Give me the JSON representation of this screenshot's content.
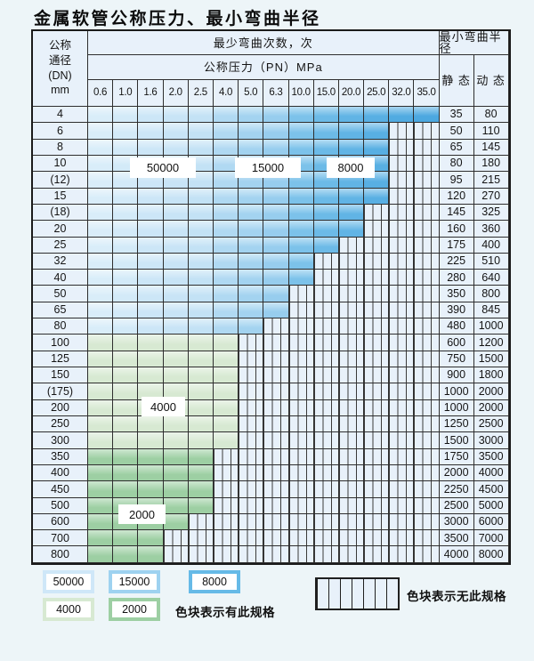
{
  "title": "金属软管公称压力、最小弯曲半径",
  "table": {
    "corner_header": [
      "公称",
      "通径",
      "(DN)",
      "mm"
    ],
    "bend_count_header": "最少弯曲次数，次",
    "pressure_header": "公称压力（PN）MPa",
    "radius_header": "最小弯曲半径",
    "static_header": "静 态",
    "dynamic_header": "动 态",
    "pressure_columns": [
      "0.6",
      "1.0",
      "1.6",
      "2.0",
      "2.5",
      "4.0",
      "5.0",
      "6.3",
      "10.0",
      "15.0",
      "20.0",
      "25.0",
      "32.0",
      "35.0"
    ],
    "rows": [
      {
        "dn": "4",
        "colored_until": 13,
        "palette": "blue",
        "static": "35",
        "dynamic": "80"
      },
      {
        "dn": "6",
        "colored_until": 11,
        "palette": "blue",
        "static": "50",
        "dynamic": "110"
      },
      {
        "dn": "8",
        "colored_until": 11,
        "palette": "blue",
        "static": "65",
        "dynamic": "145"
      },
      {
        "dn": "10",
        "colored_until": 11,
        "palette": "blue",
        "static": "80",
        "dynamic": "180"
      },
      {
        "dn": "(12)",
        "colored_until": 11,
        "palette": "blue",
        "static": "95",
        "dynamic": "215"
      },
      {
        "dn": "15",
        "colored_until": 11,
        "palette": "blue",
        "static": "120",
        "dynamic": "270"
      },
      {
        "dn": "(18)",
        "colored_until": 10,
        "palette": "blue",
        "static": "145",
        "dynamic": "325"
      },
      {
        "dn": "20",
        "colored_until": 10,
        "palette": "blue",
        "static": "160",
        "dynamic": "360"
      },
      {
        "dn": "25",
        "colored_until": 9,
        "palette": "blue",
        "static": "175",
        "dynamic": "400"
      },
      {
        "dn": "32",
        "colored_until": 8,
        "palette": "blue",
        "static": "225",
        "dynamic": "510"
      },
      {
        "dn": "40",
        "colored_until": 8,
        "palette": "blue",
        "static": "280",
        "dynamic": "640"
      },
      {
        "dn": "50",
        "colored_until": 7,
        "palette": "blue",
        "static": "350",
        "dynamic": "800"
      },
      {
        "dn": "65",
        "colored_until": 7,
        "palette": "blue",
        "static": "390",
        "dynamic": "845"
      },
      {
        "dn": "80",
        "colored_until": 6,
        "palette": "blue",
        "static": "480",
        "dynamic": "1000"
      },
      {
        "dn": "100",
        "colored_until": 5,
        "palette": "green4000",
        "static": "600",
        "dynamic": "1200"
      },
      {
        "dn": "125",
        "colored_until": 5,
        "palette": "green4000",
        "static": "750",
        "dynamic": "1500"
      },
      {
        "dn": "150",
        "colored_until": 5,
        "palette": "green4000",
        "static": "900",
        "dynamic": "1800"
      },
      {
        "dn": "(175)",
        "colored_until": 5,
        "palette": "green4000",
        "static": "1000",
        "dynamic": "2000"
      },
      {
        "dn": "200",
        "colored_until": 5,
        "palette": "green4000",
        "static": "1000",
        "dynamic": "2000"
      },
      {
        "dn": "250",
        "colored_until": 5,
        "palette": "green4000",
        "static": "1250",
        "dynamic": "2500"
      },
      {
        "dn": "300",
        "colored_until": 5,
        "palette": "green4000",
        "static": "1500",
        "dynamic": "3000"
      },
      {
        "dn": "350",
        "colored_until": 4,
        "palette": "green2000",
        "static": "1750",
        "dynamic": "3500"
      },
      {
        "dn": "400",
        "colored_until": 4,
        "palette": "green2000",
        "static": "2000",
        "dynamic": "4000"
      },
      {
        "dn": "450",
        "colored_until": 4,
        "palette": "green2000",
        "static": "2250",
        "dynamic": "4500"
      },
      {
        "dn": "500",
        "colored_until": 4,
        "palette": "green2000",
        "static": "2500",
        "dynamic": "5000"
      },
      {
        "dn": "600",
        "colored_until": 3,
        "palette": "green2000",
        "static": "3000",
        "dynamic": "6000"
      },
      {
        "dn": "700",
        "colored_until": 2,
        "palette": "green2000",
        "static": "3500",
        "dynamic": "7000"
      },
      {
        "dn": "800",
        "colored_until": 2,
        "palette": "green2000",
        "static": "4000",
        "dynamic": "8000"
      }
    ]
  },
  "overlay_labels": [
    {
      "text": "50000"
    },
    {
      "text": "15000"
    },
    {
      "text": "8000"
    },
    {
      "text": "4000"
    },
    {
      "text": "2000"
    }
  ],
  "legend": {
    "items": [
      {
        "label": "50000",
        "color_key": "legend_50000"
      },
      {
        "label": "15000",
        "color_key": "legend_15000"
      },
      {
        "label": "8000",
        "color_key": "legend_8000"
      },
      {
        "label": "4000",
        "color_key": "green_4000"
      },
      {
        "label": "2000",
        "color_key": "green_2000"
      }
    ],
    "has_spec_text": "色块表示有此规格",
    "no_spec_text": "色块表示无此规格"
  },
  "colors": {
    "blue_column_fills": [
      "#d9edf9",
      "#d3eaf8",
      "#cce6f7",
      "#c8e4f6",
      "#c3e2f5",
      "#b0d9f2",
      "#a3d3f0",
      "#97cdee",
      "#7cc2ea",
      "#6cbae7",
      "#61b4e5",
      "#58afe3",
      "#51abe1",
      "#4ca8e0"
    ],
    "green_4000": "#d7e9d2",
    "green_2000": "#9dcfa3",
    "legend_50000": "#cfe7f8",
    "legend_15000": "#9ed2f0",
    "legend_8000": "#66bae7",
    "cell_bg": "#e8f1fa",
    "grid": "#2e2e2e"
  }
}
